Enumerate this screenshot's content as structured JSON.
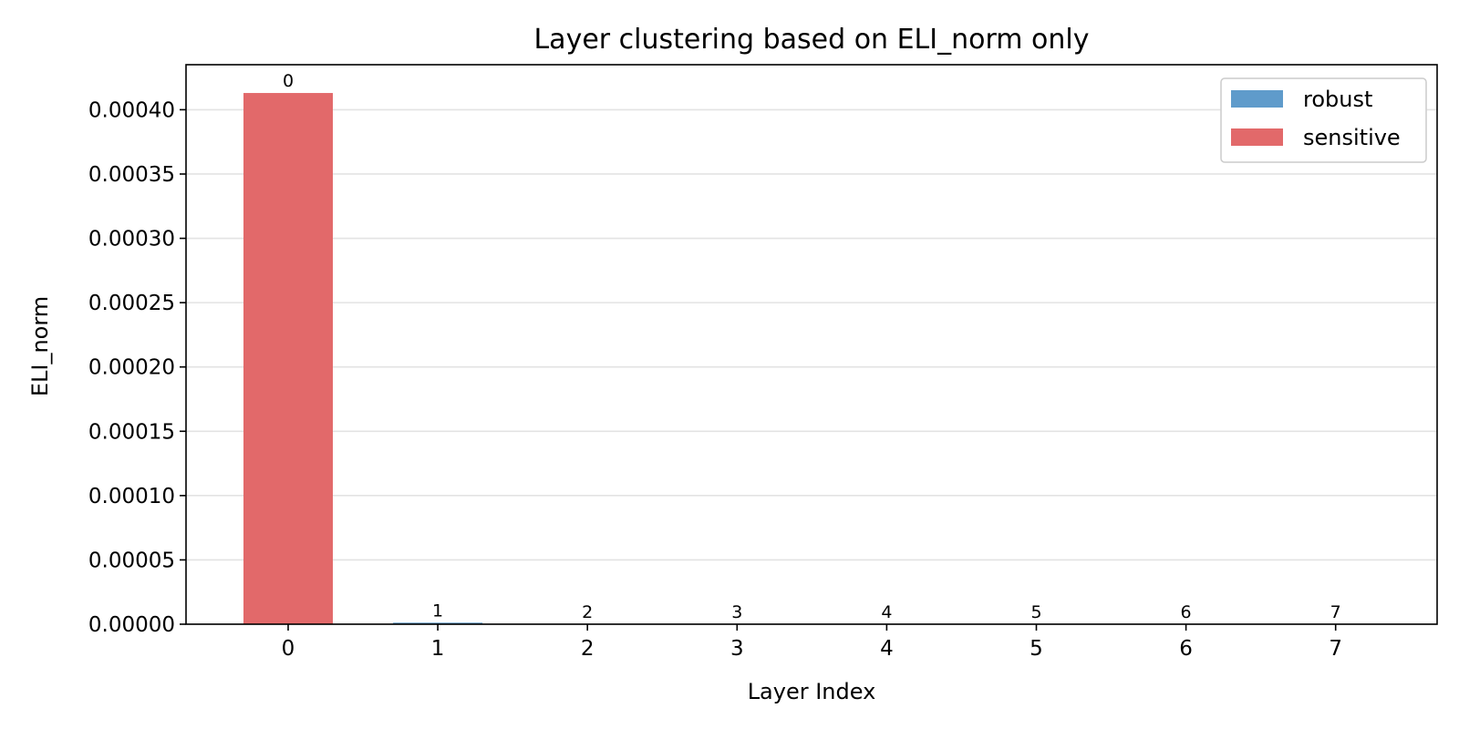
{
  "chart_data": {
    "type": "bar",
    "title": "Layer clustering based on ELI_norm only",
    "xlabel": "Layer Index",
    "ylabel": "ELI_norm",
    "categories": [
      "0",
      "1",
      "2",
      "3",
      "4",
      "5",
      "6",
      "7"
    ],
    "values": [
      0.000413,
      1.2e-06,
      1e-07,
      1e-07,
      1e-07,
      1e-07,
      1e-07,
      1e-07
    ],
    "clusters": [
      "sensitive",
      "robust",
      "robust",
      "robust",
      "robust",
      "robust",
      "robust",
      "robust"
    ],
    "bar_labels": [
      "0",
      "1",
      "2",
      "3",
      "4",
      "5",
      "6",
      "7"
    ],
    "ylim": [
      0,
      0.000435
    ],
    "yticks": [
      0,
      5e-05,
      0.0001,
      0.00015,
      0.0002,
      0.00025,
      0.0003,
      0.00035,
      0.0004
    ],
    "ytick_labels": [
      "0.00000",
      "0.00005",
      "0.00010",
      "0.00015",
      "0.00020",
      "0.00025",
      "0.00030",
      "0.00035",
      "0.00040"
    ],
    "grid": "horizontal",
    "legend": {
      "placement": "top-right",
      "entries": [
        {
          "name": "robust",
          "color": "#5f9bcb"
        },
        {
          "name": "sensitive",
          "color": "#e2696a"
        }
      ]
    },
    "colors": {
      "robust": "#5f9bcb",
      "sensitive": "#e2696a"
    }
  }
}
